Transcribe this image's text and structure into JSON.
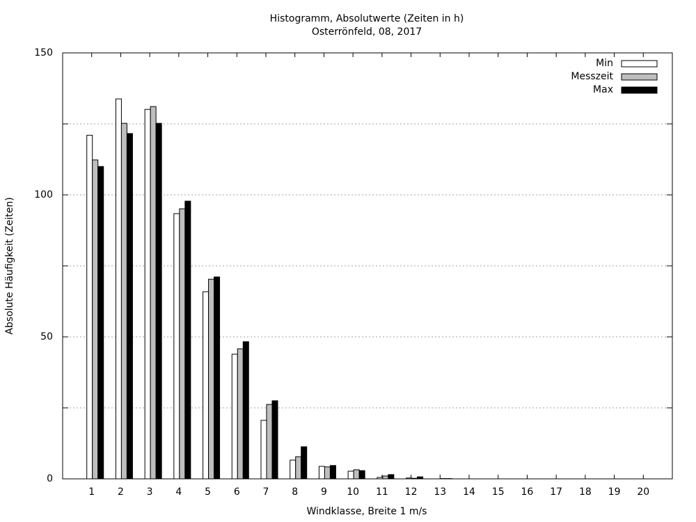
{
  "chart_data": {
    "type": "bar",
    "title": "Histogramm, Absolutwerte (Zeiten in h)",
    "subtitle": "Osterrönfeld, 08, 2017",
    "x_label": "Windklasse, Breite 1 m/s",
    "y_label": "Absolute Häufigkeit (Zeiten)",
    "categories": [
      "1",
      "2",
      "3",
      "4",
      "5",
      "6",
      "7",
      "8",
      "9",
      "10",
      "11",
      "12",
      "13",
      "14",
      "15",
      "16",
      "17",
      "18",
      "19",
      "20"
    ],
    "series": [
      {
        "name": "Min",
        "color": "#ffffff",
        "values": [
          121,
          133.8,
          130.1,
          93.4,
          65.9,
          43.9,
          20.6,
          6.6,
          4.4,
          2.7,
          0.5,
          0.3,
          0,
          0,
          0,
          0,
          0,
          0,
          0,
          0
        ]
      },
      {
        "name": "Messzeit",
        "color": "#bebebe",
        "values": [
          112.3,
          125.2,
          131.1,
          95.1,
          70.3,
          45.8,
          26.2,
          7.8,
          4.2,
          3.2,
          1.0,
          0.2,
          0.1,
          0,
          0,
          0,
          0,
          0,
          0,
          0
        ]
      },
      {
        "name": "Max",
        "color": "#000000",
        "values": [
          110,
          121.6,
          125.2,
          97.8,
          71.1,
          48.3,
          27.5,
          11.3,
          4.7,
          2.9,
          1.5,
          0.7,
          0.1,
          0,
          0,
          0,
          0,
          0,
          0,
          0
        ]
      }
    ],
    "ylim": [
      0,
      150
    ],
    "yticks": [
      0,
      50,
      100,
      150
    ],
    "y_minor_ticks": [
      25,
      75,
      125
    ],
    "grid": true,
    "legend": "top-right"
  }
}
